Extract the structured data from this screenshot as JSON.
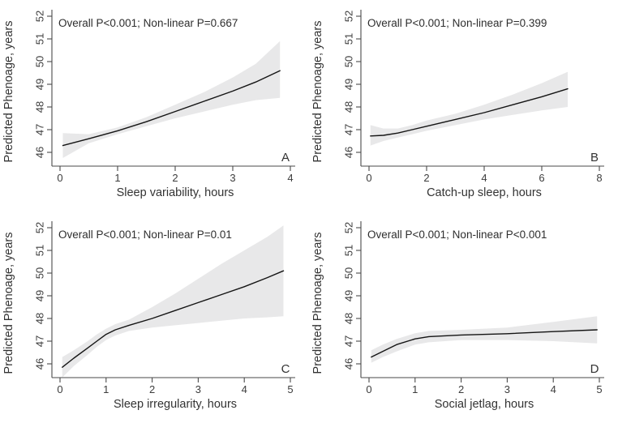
{
  "figure": {
    "background": "#ffffff",
    "band_color": "#e8e8e9",
    "line_color": "#141414",
    "axis_color": "#4a4a4a",
    "y_axis_label": "Predicted Phenoage, years",
    "y_ticks": [
      46,
      47,
      48,
      49,
      50,
      51,
      52
    ],
    "ylim": [
      46,
      52
    ]
  },
  "chart_data": [
    {
      "type": "line",
      "panel_letter": "A",
      "annotation": "Overall P<0.001; Non-linear P=0.667",
      "xlabel": "Sleep variability, hours",
      "ylabel": "Predicted Phenoage, years",
      "xlim": [
        0,
        4
      ],
      "ylim": [
        46,
        52
      ],
      "x_ticks": [
        0,
        1,
        2,
        3,
        4
      ],
      "grid": false,
      "legend": "none",
      "x": [
        0.05,
        0.5,
        1,
        1.5,
        2,
        2.5,
        3,
        3.4,
        3.82
      ],
      "series": [
        {
          "name": "fitted",
          "values": [
            46.3,
            46.6,
            46.95,
            47.35,
            47.8,
            48.25,
            48.7,
            49.1,
            49.6
          ]
        },
        {
          "name": "ci_upper",
          "values": [
            46.85,
            46.8,
            47.1,
            47.55,
            48.1,
            48.65,
            49.3,
            49.9,
            50.9
          ]
        },
        {
          "name": "ci_lower",
          "values": [
            45.75,
            46.4,
            46.8,
            47.15,
            47.5,
            47.8,
            48.1,
            48.3,
            48.4
          ]
        }
      ]
    },
    {
      "type": "line",
      "panel_letter": "B",
      "annotation": "Overall P<0.001; Non-linear P=0.399",
      "xlabel": "Catch-up sleep, hours",
      "ylabel": "Predicted Phenoage, years",
      "xlim": [
        0,
        8
      ],
      "ylim": [
        46,
        52
      ],
      "x_ticks": [
        0,
        2,
        4,
        6,
        8
      ],
      "grid": false,
      "legend": "none",
      "x": [
        0.05,
        0.5,
        1,
        1.5,
        2,
        3,
        4,
        5,
        6,
        6.9
      ],
      "series": [
        {
          "name": "fitted",
          "values": [
            46.72,
            46.75,
            46.85,
            47.0,
            47.15,
            47.45,
            47.75,
            48.1,
            48.45,
            48.8
          ]
        },
        {
          "name": "ci_upper",
          "values": [
            47.2,
            47.05,
            47.05,
            47.2,
            47.4,
            47.7,
            48.1,
            48.55,
            49.05,
            49.55
          ]
        },
        {
          "name": "ci_lower",
          "values": [
            46.3,
            46.5,
            46.65,
            46.8,
            46.95,
            47.2,
            47.45,
            47.65,
            47.85,
            48.0
          ]
        }
      ]
    },
    {
      "type": "line",
      "panel_letter": "C",
      "annotation": "Overall P<0.001; Non-linear P=0.01",
      "xlabel": "Sleep irregularity, hours",
      "ylabel": "Predicted Phenoage, years",
      "xlim": [
        0,
        5
      ],
      "ylim": [
        46,
        52
      ],
      "x_ticks": [
        0,
        1,
        2,
        3,
        4,
        5
      ],
      "grid": false,
      "legend": "none",
      "x": [
        0.05,
        0.3,
        0.6,
        0.8,
        1,
        1.2,
        1.5,
        2,
        2.5,
        3,
        3.5,
        4,
        4.5,
        4.85
      ],
      "series": [
        {
          "name": "fitted",
          "values": [
            45.85,
            46.25,
            46.7,
            47.0,
            47.3,
            47.5,
            47.7,
            48.0,
            48.35,
            48.7,
            49.05,
            49.4,
            49.8,
            50.1
          ]
        },
        {
          "name": "ci_upper",
          "values": [
            46.3,
            46.6,
            47.0,
            47.3,
            47.55,
            47.75,
            47.95,
            48.5,
            49.1,
            49.75,
            50.4,
            51.0,
            51.6,
            52.1
          ]
        },
        {
          "name": "ci_lower",
          "values": [
            45.4,
            45.9,
            46.4,
            46.75,
            47.05,
            47.25,
            47.45,
            47.6,
            47.7,
            47.8,
            47.9,
            48.0,
            48.05,
            48.1
          ]
        }
      ]
    },
    {
      "type": "line",
      "panel_letter": "D",
      "annotation": "Overall P<0.001; Non-linear P<0.001",
      "xlabel": "Social jetlag, hours",
      "ylabel": "Predicted Phenoage, years",
      "xlim": [
        0,
        5
      ],
      "ylim": [
        46,
        52
      ],
      "x_ticks": [
        0,
        1,
        2,
        3,
        4,
        5
      ],
      "grid": false,
      "legend": "none",
      "x": [
        0.05,
        0.3,
        0.6,
        1,
        1.3,
        2,
        3,
        4,
        4.95
      ],
      "series": [
        {
          "name": "fitted",
          "values": [
            46.3,
            46.55,
            46.85,
            47.1,
            47.2,
            47.27,
            47.33,
            47.42,
            47.5
          ]
        },
        {
          "name": "ci_upper",
          "values": [
            46.6,
            46.85,
            47.1,
            47.35,
            47.45,
            47.5,
            47.6,
            47.85,
            48.1
          ]
        },
        {
          "name": "ci_lower",
          "values": [
            46.05,
            46.3,
            46.55,
            46.85,
            46.95,
            47.05,
            47.05,
            47.0,
            46.9
          ]
        }
      ]
    }
  ]
}
